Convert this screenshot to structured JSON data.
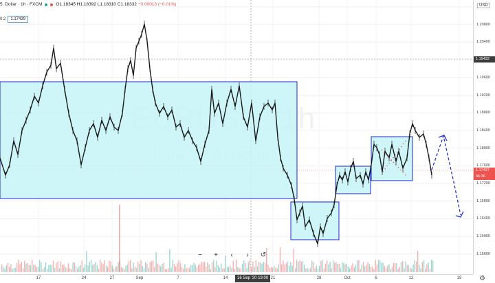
{
  "header": {
    "symbol_title": "5. Dollar · 1h · FXCM",
    "open": "O1.18345",
    "high": "H1.18392",
    "low": "L1.18310",
    "close": "C1.18332",
    "change": "−0.00013 (−0.01%)",
    "value_prefix": "0.2",
    "value_field": "1.17439"
  },
  "watermark": {
    "symbol": "EURUSD, 1h",
    "description": "Euro / U.S. Dollar"
  },
  "price_axis": {
    "currency": "USD",
    "ticks": [
      "1.21200",
      "1.20800",
      "1.20400",
      "1.20000",
      "1.19600",
      "1.19200",
      "1.18800",
      "1.18400",
      "1.18000",
      "1.17600",
      "1.17200",
      "1.16800",
      "1.16400",
      "1.16000",
      "1.15600"
    ],
    "crosshair_label": "1.19432",
    "current_price_label": "1.17437",
    "countdown_label": "46:36",
    "crosshair_color": "#3c3c3c",
    "current_price_color": "#ef5350"
  },
  "time_axis": {
    "ticks": [
      "17",
      "24",
      "27",
      "Sep",
      "7",
      "14",
      "21",
      "28",
      "Oct",
      "6",
      "12",
      "19"
    ],
    "selected_time": "16 Sep '20  19:00"
  },
  "nav_controls": {
    "zoom_out": "−",
    "zoom_in": "+",
    "scroll_left": "‹",
    "scroll_right": "›",
    "reset": "↺"
  },
  "settings_icon": "gear-icon",
  "colors": {
    "box_fill": "#c5f3f7",
    "box_border": "#1d27d1",
    "candle": "#1a1a1a",
    "arrow": "#1f2fd6",
    "volume_up": "#26a69a",
    "volume_down": "#ef5350",
    "x_marker": "#e53935"
  }
}
